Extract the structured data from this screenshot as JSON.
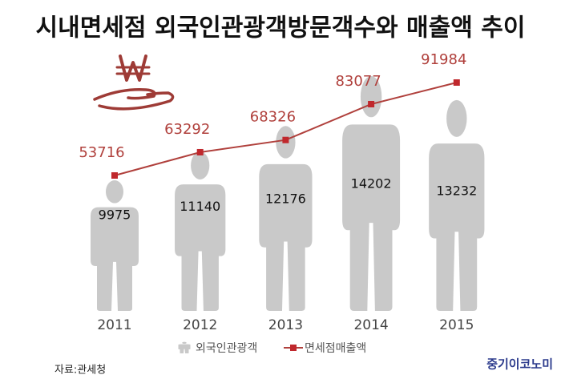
{
  "chart_data": {
    "type": "combo",
    "title": "시내면세점 외국인관광객방문객수와 매출액 추이",
    "categories": [
      "2011",
      "2012",
      "2013",
      "2014",
      "2015"
    ],
    "series": [
      {
        "name": "외국인관광객",
        "type": "pictograph",
        "color": "#c9c9c9",
        "values": [
          9975,
          11140,
          12176,
          14202,
          13232
        ]
      },
      {
        "name": "면세점매출액",
        "type": "line",
        "color": "#b0403c",
        "values": [
          53716,
          63292,
          68326,
          83077,
          91984
        ]
      }
    ],
    "source": "자료:관세청",
    "brand": "중기이코노미"
  }
}
